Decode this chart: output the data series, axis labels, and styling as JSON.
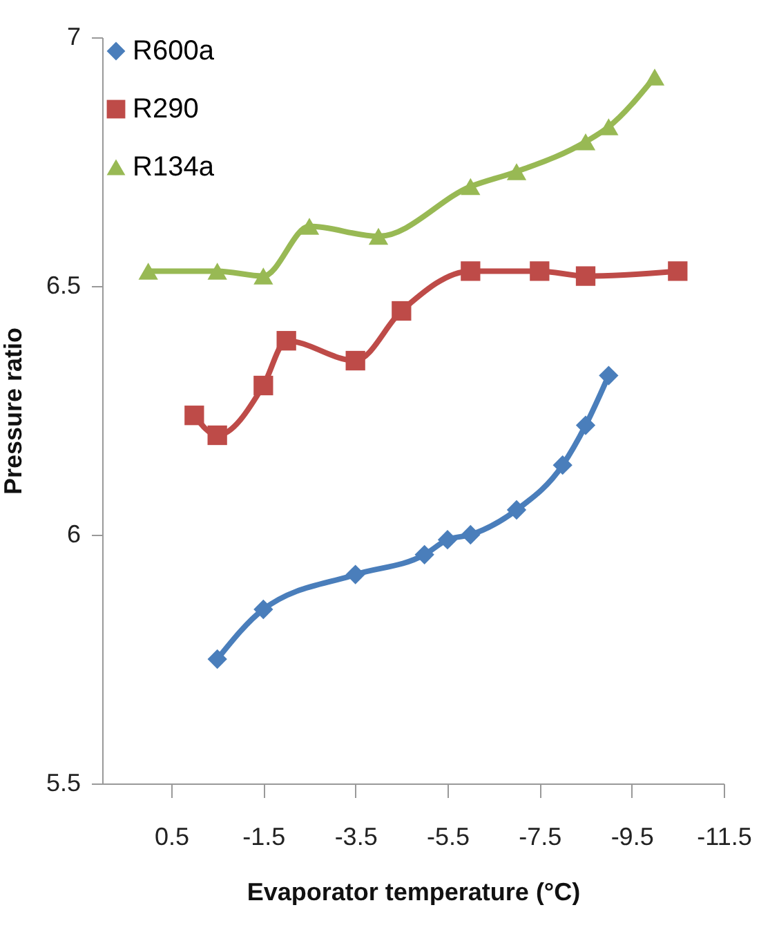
{
  "chart_data": {
    "type": "line",
    "xlabel": "Evaporator temperature  (°C)",
    "ylabel": "Pressure ratio",
    "xlim": [
      2,
      -11.5
    ],
    "xticks": [
      0.5,
      -1.5,
      -3.5,
      -5.5,
      -7.5,
      -9.5,
      -11.5
    ],
    "ylim": [
      5.5,
      7
    ],
    "yticks": [
      5.5,
      6,
      6.5,
      7
    ],
    "grid": false,
    "legend": "top left",
    "series": [
      {
        "name": "R600a",
        "color": "#4a7ebb",
        "marker": "diamond",
        "x": [
          -0.5,
          -1.5,
          -3.5,
          -5,
          -5.5,
          -6,
          -7,
          -8,
          -8.5,
          -9
        ],
        "values": [
          5.75,
          5.85,
          5.92,
          5.96,
          5.99,
          6.0,
          6.05,
          6.14,
          6.22,
          6.32
        ]
      },
      {
        "name": "R290",
        "color": "#be4b48",
        "marker": "square",
        "x": [
          0,
          -0.5,
          -1.5,
          -2,
          -3.5,
          -4.5,
          -6,
          -7.5,
          -8.5,
          -10.5
        ],
        "values": [
          6.24,
          6.2,
          6.3,
          6.39,
          6.35,
          6.45,
          6.53,
          6.53,
          6.52,
          6.53
        ]
      },
      {
        "name": "R134a",
        "color": "#98b954",
        "marker": "triangle",
        "x": [
          1,
          -0.5,
          -1.5,
          -2.5,
          -4,
          -6,
          -7,
          -8.5,
          -9,
          -10
        ],
        "values": [
          6.53,
          6.53,
          6.52,
          6.62,
          6.6,
          6.7,
          6.73,
          6.79,
          6.82,
          6.92
        ]
      }
    ]
  }
}
